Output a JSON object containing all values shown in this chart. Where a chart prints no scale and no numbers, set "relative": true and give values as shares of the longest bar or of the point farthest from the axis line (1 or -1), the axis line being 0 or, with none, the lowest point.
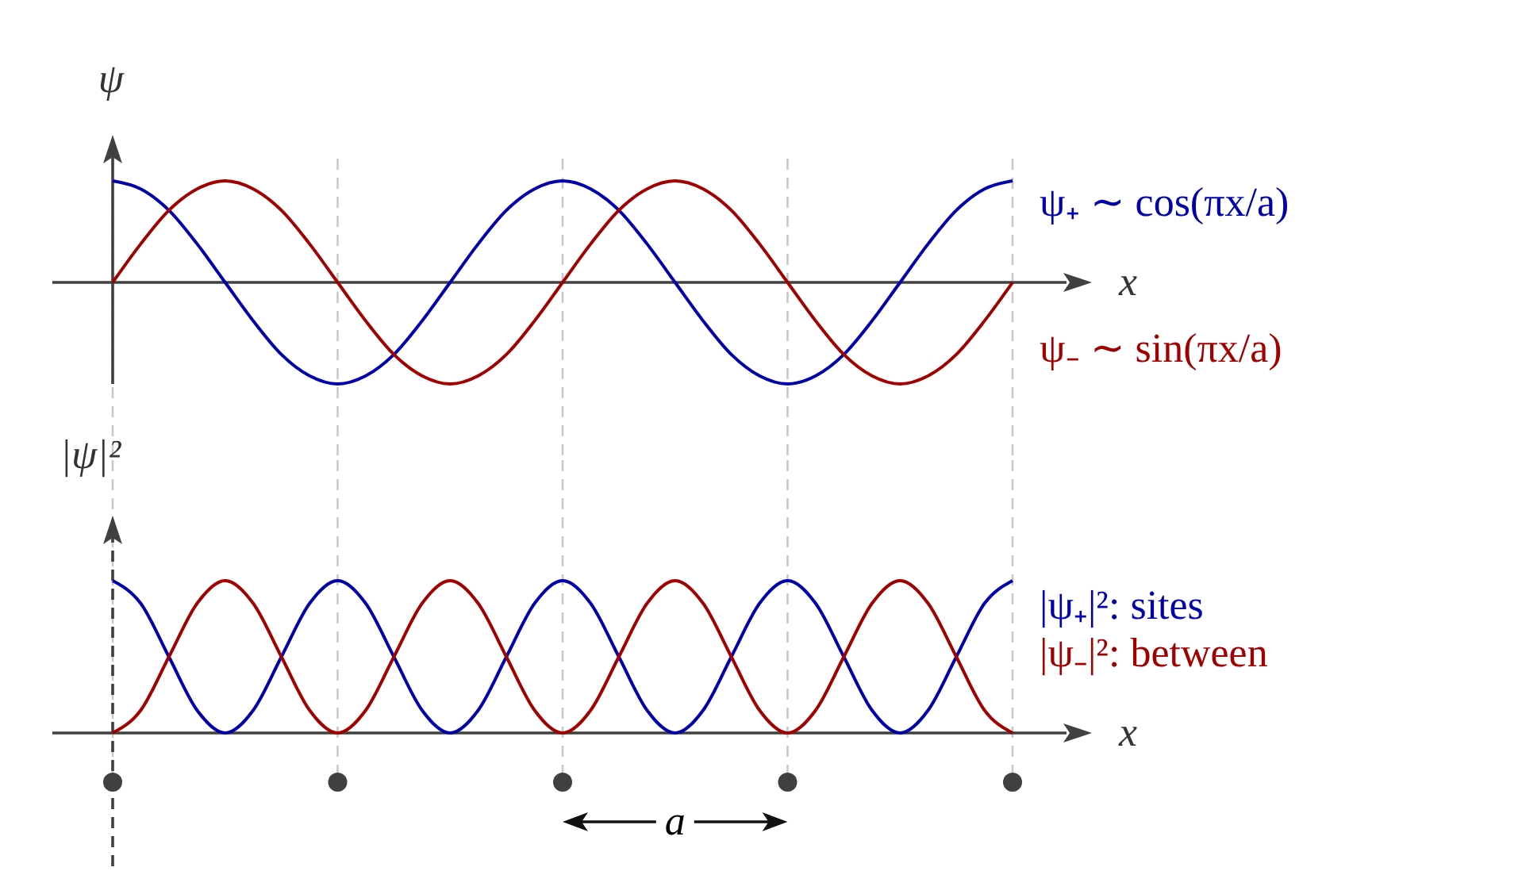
{
  "chart_data": [
    {
      "type": "line",
      "relative": true,
      "ylabel": "ψ",
      "xlabel": "x",
      "grid": "x",
      "categories": [
        null,
        null,
        null,
        null,
        null,
        null,
        null,
        null,
        null,
        null,
        null,
        null,
        null,
        null,
        null,
        null,
        null,
        null,
        null,
        null,
        null,
        null,
        null,
        null,
        null,
        null,
        null,
        null,
        null,
        null,
        null,
        null,
        null
      ],
      "series": [
        {
          "name": "ψ₊ ∼ cos(πx/a)",
          "color": "#0000aa",
          "values": [
            1,
            0.92,
            0.71,
            0.38,
            0,
            -0.38,
            -0.71,
            -0.92,
            -1,
            -0.92,
            -0.71,
            -0.38,
            0,
            0.38,
            0.71,
            0.92,
            1,
            0.92,
            0.71,
            0.38,
            0,
            -0.38,
            -0.71,
            -0.92,
            -1,
            -0.92,
            -0.71,
            -0.38,
            0,
            0.38,
            0.71,
            0.92,
            1
          ]
        },
        {
          "name": "ψ₋ ∼ sin(πx/a)",
          "color": "#a00000",
          "values": [
            0,
            0.38,
            0.71,
            0.92,
            1,
            0.92,
            0.71,
            0.38,
            0,
            -0.38,
            -0.71,
            -0.92,
            -1,
            -0.92,
            -0.71,
            -0.38,
            0,
            0.38,
            0.71,
            0.92,
            1,
            0.92,
            0.71,
            0.38,
            0,
            -0.38,
            -0.71,
            -0.92,
            -1,
            -0.92,
            -0.71,
            -0.38,
            0
          ]
        }
      ]
    },
    {
      "type": "line",
      "relative": true,
      "ylabel": "|ψ|²",
      "xlabel": "x",
      "grid": "x",
      "annotations": [
        "a"
      ],
      "categories": [
        null,
        null,
        null,
        null,
        null,
        null,
        null,
        null,
        null,
        null,
        null,
        null,
        null,
        null,
        null,
        null,
        null,
        null,
        null,
        null,
        null,
        null,
        null,
        null,
        null,
        null,
        null,
        null,
        null,
        null,
        null,
        null,
        null
      ],
      "series": [
        {
          "name": "|ψ₊|²: sites",
          "color": "#0000aa",
          "values": [
            1,
            0.85,
            0.5,
            0.15,
            0,
            0.15,
            0.5,
            0.85,
            1,
            0.85,
            0.5,
            0.15,
            0,
            0.15,
            0.5,
            0.85,
            1,
            0.85,
            0.5,
            0.15,
            0,
            0.15,
            0.5,
            0.85,
            1,
            0.85,
            0.5,
            0.15,
            0,
            0.15,
            0.5,
            0.85,
            1
          ]
        },
        {
          "name": "|ψ₋|²: between",
          "color": "#a00000",
          "values": [
            0,
            0.15,
            0.5,
            0.85,
            1,
            0.85,
            0.5,
            0.15,
            0,
            0.15,
            0.5,
            0.85,
            1,
            0.85,
            0.5,
            0.15,
            0,
            0.15,
            0.5,
            0.85,
            1,
            0.85,
            0.5,
            0.15,
            0,
            0.15,
            0.5,
            0.85,
            1,
            0.85,
            0.5,
            0.15,
            0
          ]
        }
      ]
    }
  ]
}
